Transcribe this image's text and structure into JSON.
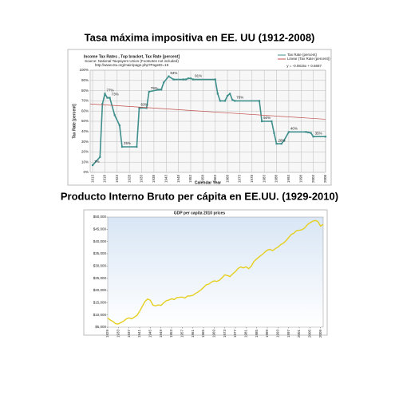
{
  "chart_data": [
    {
      "type": "line",
      "title": "Tasa máxima impositiva en EE. UU (1912-2008)",
      "inner_title": "Income Tax Rates , Top bracket, Tax Rate [percent]",
      "source": [
        "Source: National Taxpayers Union (Footnotes not included)",
        "http://www.ntu.org/main/page.php?PageID=19"
      ],
      "equation": "y = -0.0815x + 0.6687",
      "xlabel": "Calendar Year",
      "ylabel": "Tax Rate [percent]",
      "grid": true,
      "legend": "upper right",
      "xlim": [
        1912,
        2008
      ],
      "xticks": [
        1913,
        1918,
        1923,
        1928,
        1933,
        1938,
        1943,
        1948,
        1953,
        1958,
        1963,
        1968,
        1973,
        1978,
        1983,
        1988,
        1993,
        1998,
        2003,
        2008
      ],
      "ylim": [
        0,
        100
      ],
      "yticks": [
        {
          "value": 0,
          "label": "0%"
        },
        {
          "value": 10,
          "label": "10%"
        },
        {
          "value": 20,
          "label": "20%"
        },
        {
          "value": 30,
          "label": "30%"
        },
        {
          "value": 40,
          "label": "40%"
        },
        {
          "value": 50,
          "label": "50%"
        },
        {
          "value": 60,
          "label": "60%"
        },
        {
          "value": 70,
          "label": "70%"
        },
        {
          "value": 80,
          "label": "80%"
        },
        {
          "value": 90,
          "label": "90%"
        },
        {
          "value": 100,
          "label": "100%"
        }
      ],
      "series": [
        {
          "name": "Tax Rate (percent)",
          "color": "#3f8f8c",
          "markers": true,
          "x": [
            1913,
            1916,
            1917,
            1918,
            1919,
            1920,
            1922,
            1924,
            1925,
            1931,
            1932,
            1935,
            1936,
            1940,
            1941,
            1942,
            1944,
            1946,
            1950,
            1951,
            1952,
            1953,
            1954,
            1963,
            1964,
            1965,
            1967,
            1968,
            1969,
            1970,
            1971,
            1981,
            1982,
            1986,
            1987,
            1988,
            1990,
            1991,
            1993,
            2000,
            2001,
            2002,
            2003,
            2008
          ],
          "values": [
            7,
            15,
            67,
            77,
            73,
            73,
            56,
            46,
            25,
            25,
            63,
            63,
            79,
            81,
            81,
            88,
            94,
            91,
            91,
            91,
            92,
            92,
            91,
            91,
            77,
            70,
            70,
            75,
            77,
            71,
            70,
            70,
            50,
            50,
            38.5,
            28,
            28,
            31,
            39.6,
            39.6,
            39.1,
            38.6,
            35,
            35
          ],
          "value_labels": [
            "7%",
            null,
            null,
            "77%",
            null,
            "73%",
            null,
            null,
            "25%",
            null,
            "63%",
            null,
            "79%",
            null,
            null,
            null,
            "94%",
            null,
            null,
            null,
            null,
            null,
            "91%",
            null,
            null,
            null,
            null,
            null,
            null,
            null,
            "70%",
            null,
            "50%",
            null,
            null,
            "28%",
            null,
            null,
            "40%",
            null,
            null,
            null,
            "35%",
            null
          ]
        },
        {
          "name": "Linear (Tax Rate (percent))",
          "color": "#c0504d",
          "markers": false,
          "x": [
            1912,
            2008
          ],
          "values": [
            67,
            52
          ]
        }
      ]
    },
    {
      "type": "line",
      "title": "Producto Interno Bruto per cápita en EE.UU. (1929-2010)",
      "inner_title": "GDP per capita 2010 prices",
      "grid": false,
      "xlim": [
        1929,
        2010
      ],
      "xticks": [
        1929,
        1933,
        1937,
        1941,
        1945,
        1949,
        1953,
        1957,
        1961,
        1965,
        1969,
        1973,
        1977,
        1981,
        1985,
        1989,
        1993,
        1997,
        2001,
        2005,
        2009
      ],
      "ylim": [
        5000,
        50000
      ],
      "yticks": [
        {
          "value": 5000,
          "label": "$5,000"
        },
        {
          "value": 10000,
          "label": "$10,000"
        },
        {
          "value": 15000,
          "label": "$15,000"
        },
        {
          "value": 20000,
          "label": "$20,000"
        },
        {
          "value": 25000,
          "label": "$25,000"
        },
        {
          "value": 30000,
          "label": "$30,000"
        },
        {
          "value": 35000,
          "label": "$35,000"
        },
        {
          "value": 40000,
          "label": "$40,000"
        },
        {
          "value": 45000,
          "label": "$45,000"
        },
        {
          "value": 50000,
          "label": "$50,000"
        }
      ],
      "series": [
        {
          "color": "#e6cf1e",
          "markers": false,
          "x": [
            1929,
            1930,
            1931,
            1932,
            1933,
            1934,
            1935,
            1936,
            1937,
            1938,
            1939,
            1940,
            1941,
            1942,
            1943,
            1944,
            1945,
            1946,
            1947,
            1948,
            1949,
            1950,
            1951,
            1952,
            1953,
            1954,
            1955,
            1956,
            1957,
            1958,
            1959,
            1960,
            1961,
            1962,
            1963,
            1964,
            1965,
            1966,
            1967,
            1968,
            1969,
            1970,
            1971,
            1972,
            1973,
            1974,
            1975,
            1976,
            1977,
            1978,
            1979,
            1980,
            1981,
            1982,
            1983,
            1984,
            1985,
            1986,
            1987,
            1988,
            1989,
            1990,
            1991,
            1992,
            1993,
            1994,
            1995,
            1996,
            1997,
            1998,
            1999,
            2000,
            2001,
            2002,
            2003,
            2004,
            2005,
            2006,
            2007,
            2008,
            2009,
            2010
          ],
          "values": [
            8700,
            7900,
            7300,
            6400,
            6300,
            6900,
            7500,
            8400,
            8800,
            8400,
            9100,
            9800,
            11500,
            13500,
            15500,
            16500,
            16000,
            14000,
            13700,
            14100,
            13900,
            14900,
            15800,
            16100,
            16600,
            16300,
            17100,
            17200,
            17300,
            16900,
            17700,
            17800,
            18000,
            18800,
            19400,
            20200,
            21200,
            22300,
            22600,
            23400,
            23900,
            23700,
            24200,
            25200,
            26400,
            26100,
            25700,
            26800,
            27700,
            29000,
            29600,
            29200,
            29700,
            28900,
            30000,
            31900,
            32900,
            33800,
            34600,
            35600,
            36500,
            36800,
            36300,
            37100,
            37700,
            38700,
            39300,
            40300,
            41600,
            42900,
            43400,
            44500,
            44600,
            44800,
            45500,
            46800,
            47600,
            48300,
            48600,
            48200,
            46300,
            47000
          ]
        }
      ]
    }
  ]
}
